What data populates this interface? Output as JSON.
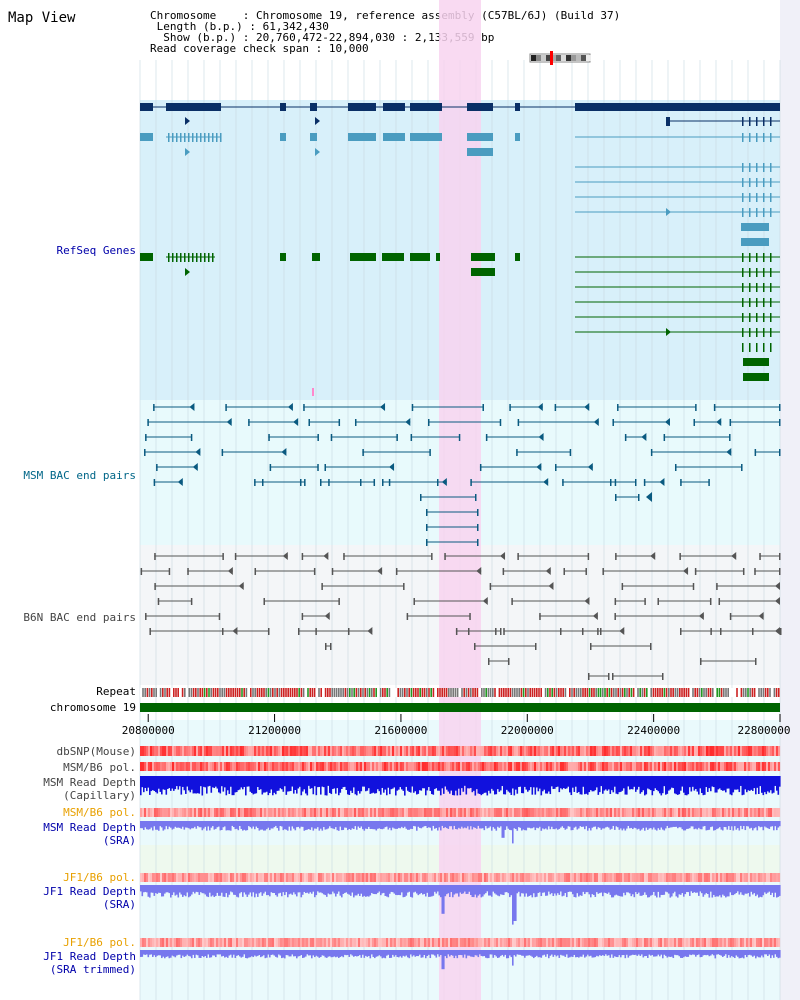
{
  "title": "Map View",
  "header": {
    "chromosome_label": "Chromosome",
    "chromosome_value": "Chromosome 19, reference assembly (C57BL/6J) (Build 37)",
    "length_label": "Length (b.p.)",
    "length_value": "61,342,430",
    "show_label": "Show (b.p.)",
    "show_value": "20,760,472-22,894,030 : 2,133,559 bp",
    "coverage_label": "Read coverage check span",
    "coverage_value": "10,000"
  },
  "tracks": {
    "refseq": "RefSeq Genes",
    "msm_bac": "MSM BAC end pairs",
    "b6n_bac": "B6N BAC end pairs",
    "repeat": "Repeat",
    "chromosome": "chromosome 19",
    "dbsnp": "dbSNP(Mouse)",
    "msm_b6_pol_1": "MSM/B6 pol.",
    "msm_depth_cap_1": "MSM Read Depth",
    "msm_depth_cap_2": "(Capillary)",
    "msm_b6_pol_2": "MSM/B6 pol.",
    "msm_depth_sra_1": "MSM Read Depth",
    "msm_depth_sra_2": "(SRA)",
    "jf1_b6_pol_1": "JF1/B6 pol.",
    "jf1_depth_sra_1": "JF1 Read Depth",
    "jf1_depth_sra_2": "(SRA)",
    "jf1_b6_pol_2": "JF1/B6 pol.",
    "jf1_depth_trim_1": "JF1 Read Depth",
    "jf1_depth_trim_2": "(SRA trimmed)"
  },
  "axis": {
    "ticks": [
      "20800000",
      "21200000",
      "21600000",
      "22000000",
      "22400000",
      "22800000"
    ],
    "tick_values": [
      20800000,
      21200000,
      21600000,
      22000000,
      22400000,
      22800000
    ],
    "range": [
      20760472,
      22894030
    ]
  },
  "colors": {
    "highlight": "#f8d4f0",
    "refseq_bg": "#d8f0fa",
    "bac_bg": "#e8fafc",
    "gene_navy": "#0a2f66",
    "gene_steel": "#4a9cc0",
    "gene_green": "#006400",
    "bac_teal": "#0a5a80",
    "bac_gray": "#555555",
    "chrom_green": "#006400",
    "snp_red": "#ee2222",
    "depth_blue": "#1111dd",
    "depth_light": "#7777ee"
  }
}
